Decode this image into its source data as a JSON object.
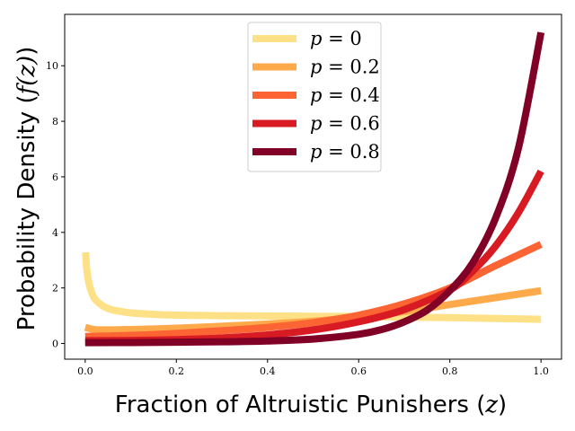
{
  "chart_data": {
    "type": "line",
    "title": "",
    "xlabel": {
      "prefix": "Fraction of Altruistic Punishers (",
      "symbol": "z",
      "suffix": ")"
    },
    "ylabel": {
      "prefix": "Probability Density (",
      "symbol": "f(z)",
      "suffix": ")"
    },
    "xlim": [
      -0.045,
      1.045
    ],
    "ylim": [
      -0.565,
      11.85
    ],
    "xticks": [
      0.0,
      0.2,
      0.4,
      0.6,
      0.8,
      1.0
    ],
    "xtick_labels": [
      "0.0",
      "0.2",
      "0.4",
      "0.6",
      "0.8",
      "1.0"
    ],
    "yticks": [
      0,
      2,
      4,
      6,
      8,
      10
    ],
    "ytick_labels": [
      "0",
      "2",
      "4",
      "6",
      "8",
      "10"
    ],
    "grid": false,
    "legend_position": "top-center",
    "series": [
      {
        "name": "p = 0",
        "label_symbol": "p",
        "label_value": "= 0",
        "color": "#fee086",
        "x": [
          0.001,
          0.003,
          0.006,
          0.01,
          0.02,
          0.04,
          0.06,
          0.08,
          0.1,
          0.15,
          0.2,
          0.3,
          0.4,
          0.5,
          0.6,
          0.7,
          0.8,
          0.9,
          1.0
        ],
        "y": [
          3.28,
          2.73,
          2.37,
          2.05,
          1.63,
          1.34,
          1.21,
          1.15,
          1.1,
          1.05,
          1.02,
          1.0,
          0.99,
          0.98,
          0.97,
          0.95,
          0.93,
          0.9,
          0.87
        ]
      },
      {
        "name": "p = 0.2",
        "label_symbol": "p",
        "label_value": "= 0.2",
        "color": "#feaa4a",
        "x": [
          0.0,
          0.02,
          0.05,
          0.1,
          0.2,
          0.3,
          0.4,
          0.5,
          0.6,
          0.7,
          0.8,
          0.9,
          1.0
        ],
        "y": [
          0.58,
          0.5,
          0.49,
          0.5,
          0.55,
          0.62,
          0.7,
          0.8,
          0.95,
          1.15,
          1.4,
          1.65,
          1.9
        ]
      },
      {
        "name": "p = 0.4",
        "label_symbol": "p",
        "label_value": "= 0.4",
        "color": "#fc6433",
        "x": [
          0.0,
          0.1,
          0.2,
          0.3,
          0.4,
          0.5,
          0.6,
          0.7,
          0.8,
          0.9,
          1.0
        ],
        "y": [
          0.25,
          0.29,
          0.36,
          0.46,
          0.58,
          0.75,
          1.02,
          1.43,
          2.0,
          2.8,
          3.57
        ]
      },
      {
        "name": "p = 0.6",
        "label_symbol": "p",
        "label_value": "= 0.6",
        "color": "#d81b23",
        "x": [
          0.0,
          0.1,
          0.2,
          0.3,
          0.4,
          0.5,
          0.6,
          0.7,
          0.8,
          0.85,
          0.9,
          0.95,
          1.0
        ],
        "y": [
          0.1,
          0.11,
          0.14,
          0.2,
          0.31,
          0.49,
          0.78,
          1.22,
          1.93,
          2.6,
          3.5,
          4.7,
          6.2
        ]
      },
      {
        "name": "p = 0.8",
        "label_symbol": "p",
        "label_value": "= 0.8",
        "color": "#800026",
        "x": [
          0.0,
          0.1,
          0.2,
          0.3,
          0.4,
          0.5,
          0.6,
          0.65,
          0.7,
          0.75,
          0.8,
          0.85,
          0.9,
          0.95,
          1.0
        ],
        "y": [
          0.03,
          0.035,
          0.045,
          0.06,
          0.09,
          0.16,
          0.33,
          0.5,
          0.78,
          1.2,
          1.9,
          2.9,
          4.5,
          7.0,
          11.2
        ]
      }
    ]
  }
}
